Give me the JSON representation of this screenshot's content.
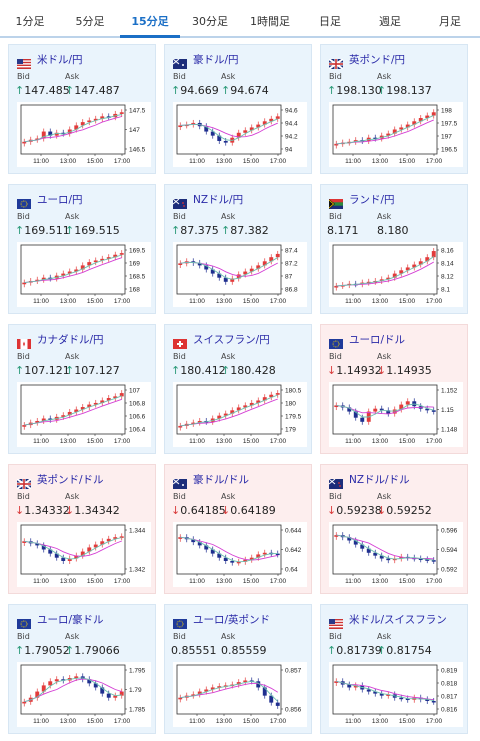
{
  "tabs": [
    {
      "label": "1分足",
      "active": false
    },
    {
      "label": "5分足",
      "active": false
    },
    {
      "label": "15分足",
      "active": true
    },
    {
      "label": "30分足",
      "active": false
    },
    {
      "label": "1時間足",
      "active": false
    },
    {
      "label": "日足",
      "active": false
    },
    {
      "label": "週足",
      "active": false
    },
    {
      "label": "月足",
      "active": false
    }
  ],
  "bid_label": "Bid",
  "ask_label": "Ask",
  "x_ticks": [
    "11:00",
    "13:00",
    "15:00",
    "17:00"
  ],
  "cards": [
    {
      "name": "米ドル/円",
      "flag": "us",
      "dir": "up",
      "bid": "147.485",
      "ask": "147.487",
      "y_ticks": [
        "147.5",
        "147",
        "146.5"
      ],
      "trend": [
        0.2,
        0.25,
        0.28,
        0.45,
        0.35,
        0.42,
        0.4,
        0.5,
        0.6,
        0.68,
        0.72,
        0.76,
        0.82,
        0.8,
        0.88,
        0.92
      ]
    },
    {
      "name": "豪ドル/円",
      "flag": "au",
      "dir": "up",
      "bid": "94.669",
      "ask": "94.674",
      "y_ticks": [
        "94.6",
        "94.4",
        "94.2",
        "94"
      ],
      "trend": [
        0.6,
        0.62,
        0.66,
        0.58,
        0.45,
        0.35,
        0.22,
        0.18,
        0.3,
        0.42,
        0.48,
        0.55,
        0.62,
        0.7,
        0.76,
        0.82
      ]
    },
    {
      "name": "英ポンド/円",
      "flag": "gb",
      "dir": "up",
      "bid": "198.130",
      "ask": "198.137",
      "y_ticks": [
        "198",
        "197.5",
        "197",
        "196.5"
      ],
      "trend": [
        0.15,
        0.18,
        0.2,
        0.24,
        0.22,
        0.3,
        0.28,
        0.35,
        0.4,
        0.5,
        0.55,
        0.62,
        0.7,
        0.78,
        0.84,
        0.92
      ]
    },
    {
      "name": "ユーロ/円",
      "flag": "eu",
      "dir": "up",
      "bid": "169.511",
      "ask": "169.515",
      "y_ticks": [
        "169.5",
        "169",
        "168.5",
        "168"
      ],
      "trend": [
        0.18,
        0.22,
        0.25,
        0.3,
        0.28,
        0.35,
        0.4,
        0.45,
        0.5,
        0.6,
        0.68,
        0.72,
        0.76,
        0.8,
        0.86,
        0.9
      ]
    },
    {
      "name": "NZドル/円",
      "flag": "nz",
      "dir": "up",
      "bid": "87.375",
      "ask": "87.382",
      "y_ticks": [
        "87.4",
        "87.2",
        "87",
        "86.8"
      ],
      "trend": [
        0.65,
        0.7,
        0.66,
        0.6,
        0.5,
        0.4,
        0.3,
        0.2,
        0.28,
        0.38,
        0.45,
        0.52,
        0.6,
        0.7,
        0.8,
        0.88
      ]
    },
    {
      "name": "ランド/円",
      "flag": "za",
      "dir": "flat",
      "bid": "8.171",
      "ask": "8.180",
      "y_ticks": [
        "8.16",
        "8.14",
        "8.12",
        "8.1"
      ],
      "trend": [
        0.1,
        0.12,
        0.15,
        0.14,
        0.18,
        0.2,
        0.22,
        0.26,
        0.3,
        0.4,
        0.48,
        0.55,
        0.62,
        0.7,
        0.8,
        0.95
      ]
    },
    {
      "name": "カナダドル/円",
      "flag": "ca",
      "dir": "up",
      "bid": "107.121",
      "ask": "107.127",
      "y_ticks": [
        "107",
        "106.8",
        "106.6",
        "106.4"
      ],
      "trend": [
        0.12,
        0.18,
        0.22,
        0.28,
        0.25,
        0.32,
        0.36,
        0.44,
        0.5,
        0.56,
        0.62,
        0.66,
        0.72,
        0.78,
        0.82,
        0.9
      ]
    },
    {
      "name": "スイスフラン/円",
      "flag": "ch",
      "dir": "up",
      "bid": "180.412",
      "ask": "180.428",
      "y_ticks": [
        "180.5",
        "180",
        "179.5",
        "179"
      ],
      "trend": [
        0.1,
        0.15,
        0.18,
        0.22,
        0.2,
        0.28,
        0.35,
        0.4,
        0.48,
        0.55,
        0.6,
        0.66,
        0.72,
        0.8,
        0.86,
        0.9
      ]
    },
    {
      "name": "ユーロ/ドル",
      "flag": "eu",
      "dir": "down",
      "bid": "1.14932",
      "ask": "1.14935",
      "y_ticks": [
        "1.152",
        "1.15",
        "1.148"
      ],
      "trend": [
        0.6,
        0.55,
        0.45,
        0.3,
        0.2,
        0.45,
        0.52,
        0.48,
        0.4,
        0.5,
        0.62,
        0.7,
        0.58,
        0.52,
        0.48,
        0.45
      ]
    },
    {
      "name": "英ポンド/ドル",
      "flag": "gb",
      "dir": "down",
      "bid": "1.34332",
      "ask": "1.34342",
      "y_ticks": [
        "1.344",
        "1.342"
      ],
      "trend": [
        0.7,
        0.65,
        0.6,
        0.5,
        0.4,
        0.3,
        0.22,
        0.28,
        0.35,
        0.45,
        0.55,
        0.62,
        0.7,
        0.76,
        0.8,
        0.82
      ]
    },
    {
      "name": "豪ドル/ドル",
      "flag": "au",
      "dir": "down",
      "bid": "0.64185",
      "ask": "0.64189",
      "y_ticks": [
        "0.644",
        "0.642",
        "0.64"
      ],
      "trend": [
        0.8,
        0.75,
        0.68,
        0.6,
        0.5,
        0.4,
        0.3,
        0.22,
        0.18,
        0.2,
        0.25,
        0.3,
        0.38,
        0.42,
        0.4,
        0.38
      ]
    },
    {
      "name": "NZドル/ドル",
      "flag": "nz",
      "dir": "down",
      "bid": "0.59238",
      "ask": "0.59252",
      "y_ticks": [
        "0.596",
        "0.594",
        "0.592"
      ],
      "trend": [
        0.85,
        0.8,
        0.72,
        0.62,
        0.52,
        0.42,
        0.35,
        0.28,
        0.24,
        0.28,
        0.32,
        0.3,
        0.28,
        0.26,
        0.24,
        0.22
      ]
    },
    {
      "name": "ユーロ/豪ドル",
      "flag": "eu",
      "dir": "up",
      "bid": "1.79052",
      "ask": "1.79066",
      "y_ticks": [
        "1.795",
        "1.79",
        "1.785"
      ],
      "trend": [
        0.2,
        0.3,
        0.45,
        0.6,
        0.7,
        0.75,
        0.72,
        0.78,
        0.82,
        0.75,
        0.65,
        0.55,
        0.4,
        0.3,
        0.35,
        0.45
      ]
    },
    {
      "name": "ユーロ/英ポンド",
      "flag": "eu",
      "dir": "flat",
      "bid": "0.85551",
      "ask": "0.85559",
      "y_ticks": [
        "0.857",
        "0.856"
      ],
      "trend": [
        0.3,
        0.35,
        0.38,
        0.45,
        0.5,
        0.55,
        0.58,
        0.6,
        0.62,
        0.68,
        0.72,
        0.7,
        0.55,
        0.35,
        0.18,
        0.1
      ]
    },
    {
      "name": "米ドル/スイスフラン",
      "flag": "us",
      "dir": "up",
      "bid": "0.81739",
      "ask": "0.81754",
      "y_ticks": [
        "0.819",
        "0.818",
        "0.817",
        "0.816"
      ],
      "trend": [
        0.7,
        0.62,
        0.55,
        0.6,
        0.5,
        0.45,
        0.4,
        0.35,
        0.38,
        0.3,
        0.28,
        0.25,
        0.3,
        0.26,
        0.22,
        0.2
      ]
    }
  ],
  "colors": {
    "candle_up": "#e23b3b",
    "candle_down": "#1f2f8f",
    "ma_line": "#d43fd4",
    "ma_line2": "#6bbfae",
    "up_bg": "#eaf4fc",
    "down_bg": "#fdeeee",
    "accent": "#1b6fc6"
  }
}
